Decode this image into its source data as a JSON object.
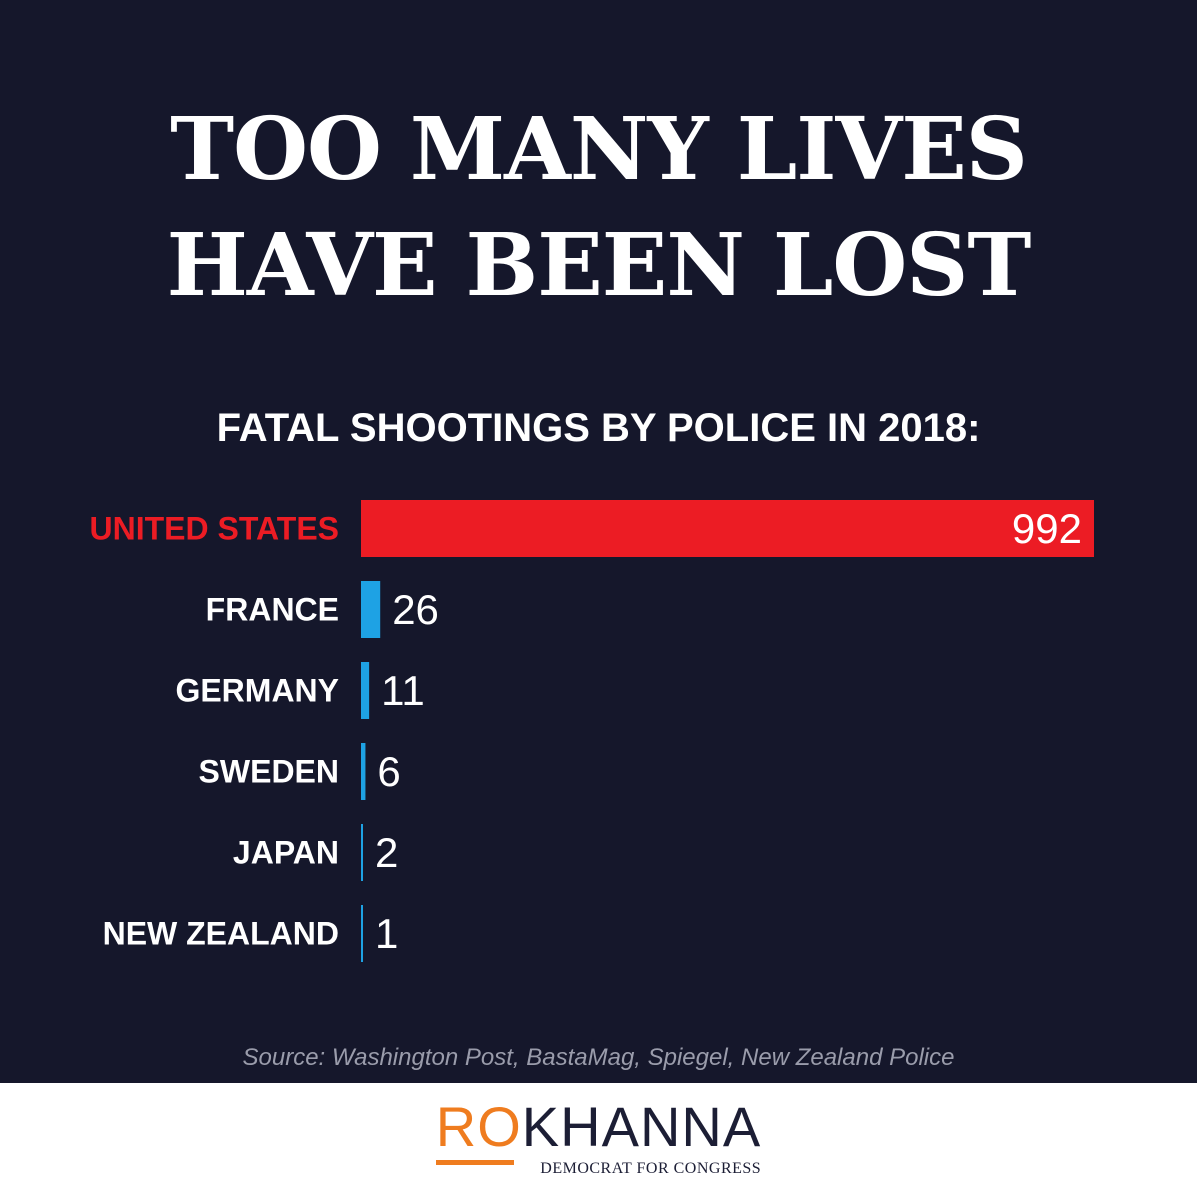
{
  "headline": {
    "line1": "TOO MANY LIVES",
    "line2": "HAVE BEEN LOST"
  },
  "chart_data": {
    "type": "bar",
    "orientation": "horizontal",
    "title": "FATAL SHOOTINGS BY POLICE IN 2018:",
    "categories": [
      "UNITED STATES",
      "FRANCE",
      "GERMANY",
      "SWEDEN",
      "JAPAN",
      "NEW ZEALAND"
    ],
    "values": [
      992,
      26,
      11,
      6,
      2,
      1
    ],
    "highlight_category": "UNITED STATES",
    "grid": false,
    "legend": "none"
  },
  "source": "Source: Washington Post, BastaMag, Spiegel, New Zealand Police",
  "logo": {
    "part1": "RO",
    "part2": "KHANNA",
    "tagline": "DEMOCRAT FOR CONGRESS"
  },
  "colors": {
    "background": "#15172b",
    "highlight": "#ec1c24",
    "bar": "#1ea2e4",
    "text": "#ffffff",
    "source_text": "#9a9cab",
    "logo_orange": "#ef7c1f",
    "logo_navy": "#1c1e35"
  }
}
